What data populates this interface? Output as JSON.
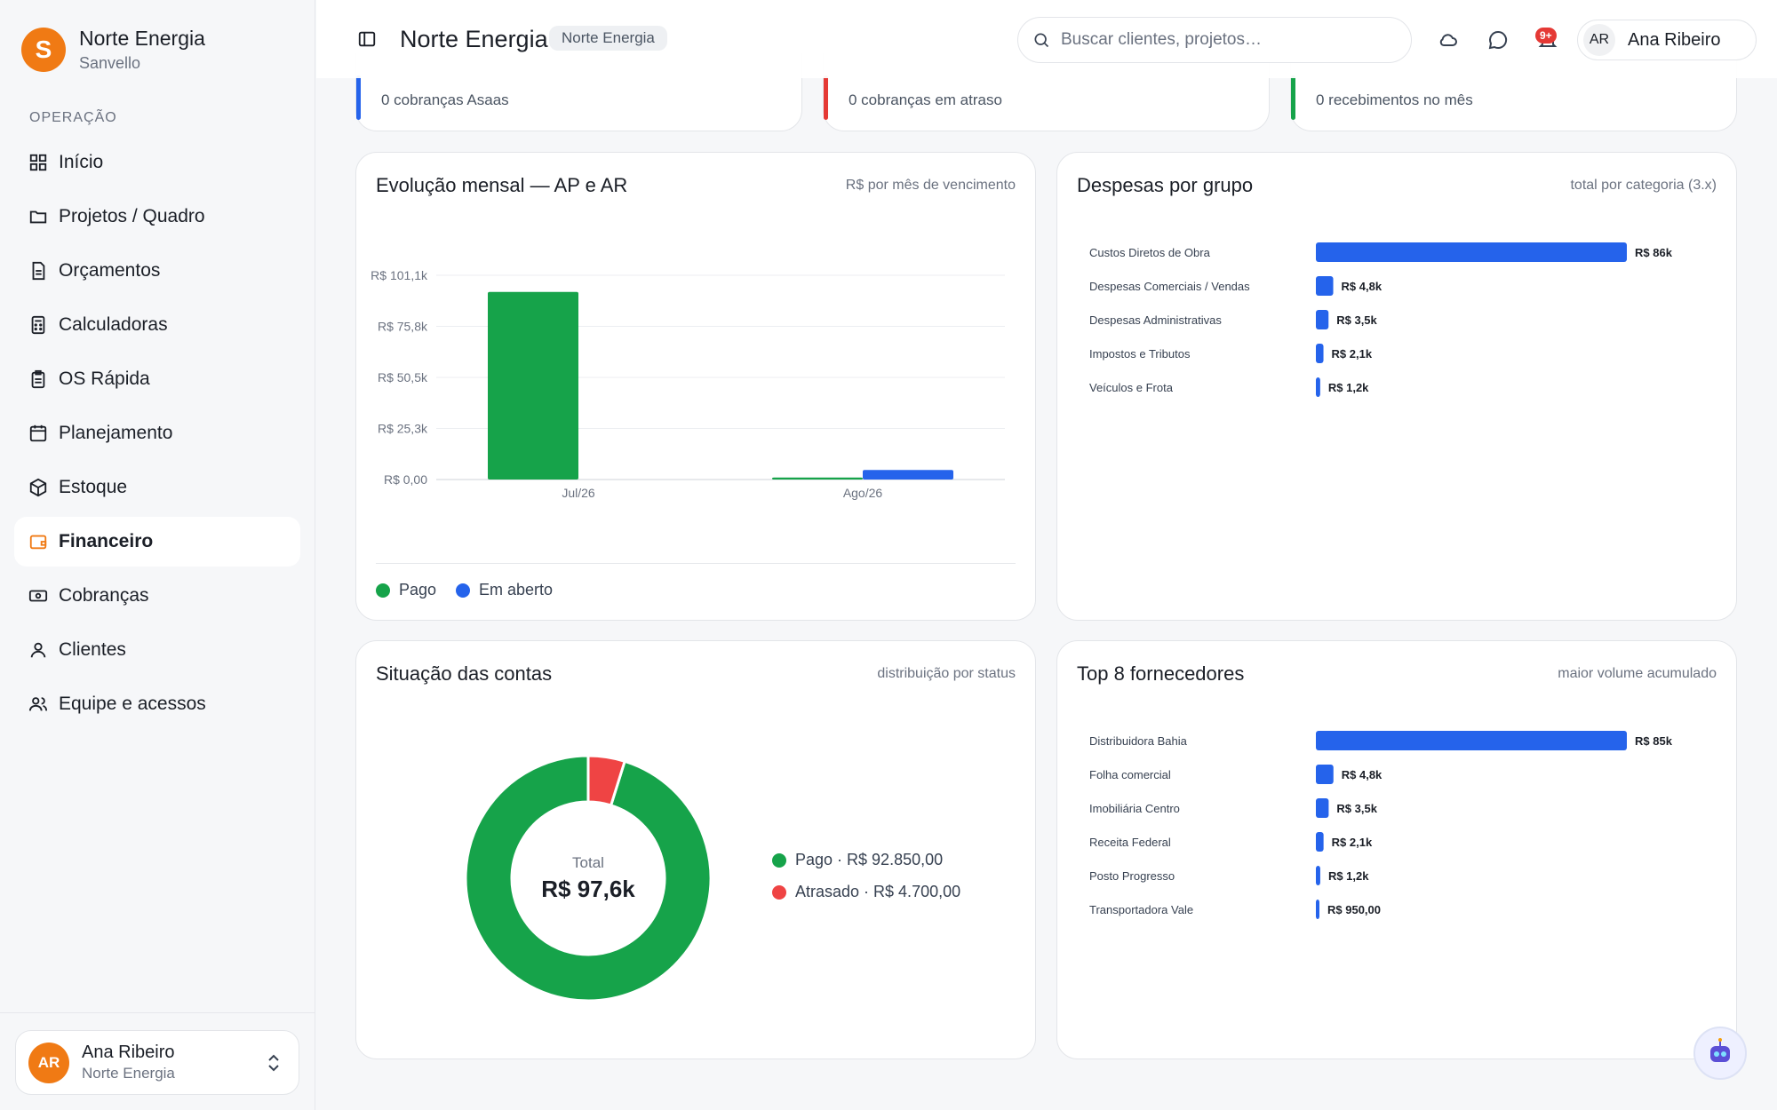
{
  "brand": {
    "logo_letter": "S",
    "name": "Norte Energia",
    "subtitle": "Sanvello"
  },
  "sidebar": {
    "section_label": "OPERAÇÃO",
    "items": [
      {
        "label": "Início",
        "icon": "grid-icon"
      },
      {
        "label": "Projetos / Quadro",
        "icon": "folder-icon"
      },
      {
        "label": "Orçamentos",
        "icon": "document-icon"
      },
      {
        "label": "Calculadoras",
        "icon": "calculator-icon"
      },
      {
        "label": "OS Rápida",
        "icon": "clipboard-icon"
      },
      {
        "label": "Planejamento",
        "icon": "calendar-icon"
      },
      {
        "label": "Estoque",
        "icon": "box-icon"
      },
      {
        "label": "Financeiro",
        "icon": "wallet-icon",
        "active": true
      },
      {
        "label": "Cobranças",
        "icon": "banknote-icon"
      },
      {
        "label": "Clientes",
        "icon": "user-icon"
      },
      {
        "label": "Equipe e acessos",
        "icon": "users-icon"
      }
    ],
    "user": {
      "initials": "AR",
      "name": "Ana Ribeiro",
      "org": "Norte Energia"
    }
  },
  "header": {
    "title": "Norte Energia",
    "chip": "Norte Energia",
    "search_placeholder": "Buscar clientes, projetos…",
    "notification_badge": "9+",
    "user_initials": "AR",
    "user_name": "Ana Ribeiro"
  },
  "stats": [
    {
      "sub": "0 cobranças Asaas",
      "color": "#2563eb"
    },
    {
      "sub": "0 cobranças em atraso",
      "color": "#e53935"
    },
    {
      "sub": "0 recebimentos no mês",
      "color": "#16a34a"
    }
  ],
  "evolucao": {
    "title": "Evolução mensal — AP e AR",
    "note": "R$ por mês de vencimento",
    "legend": [
      {
        "label": "Pago",
        "color": "#16a34a"
      },
      {
        "label": "Em aberto",
        "color": "#2563eb"
      }
    ]
  },
  "despesas": {
    "title": "Despesas por grupo",
    "note": "total por categoria (3.x)"
  },
  "situacao": {
    "title": "Situação das contas",
    "note": "distribuição por status",
    "center_label": "Total",
    "center_value": "R$ 97,6k",
    "legend": [
      {
        "label": "Pago · R$ 92.850,00",
        "color": "#16a34a"
      },
      {
        "label": "Atrasado · R$ 4.700,00",
        "color": "#ef4444"
      }
    ]
  },
  "fornecedores": {
    "title": "Top 8 fornecedores",
    "note": "maior volume acumulado"
  },
  "chart_data": [
    {
      "type": "bar",
      "categories": [
        "Jul/26",
        "Ago/26"
      ],
      "series": [
        {
          "name": "Pago",
          "color": "#16a34a",
          "values": [
            92850,
            1000
          ]
        },
        {
          "name": "Em aberto",
          "color": "#2563eb",
          "values": [
            0,
            4700
          ]
        }
      ],
      "yticks": [
        "R$ 0,00",
        "R$ 25,3k",
        "R$ 50,5k",
        "R$ 75,8k",
        "R$ 101,1k"
      ],
      "ylim": [
        0,
        101100
      ],
      "grid": true
    },
    {
      "type": "bar",
      "orientation": "horizontal",
      "categories": [
        "Custos Diretos de Obra",
        "Despesas Comerciais / Vendas",
        "Despesas Administrativas",
        "Impostos e Tributos",
        "Veículos e Frota"
      ],
      "values": [
        86000,
        4800,
        3500,
        2100,
        1200
      ],
      "labels": [
        "R$ 86k",
        "R$ 4,8k",
        "R$ 3,5k",
        "R$ 2,1k",
        "R$ 1,2k"
      ],
      "color": "#2563eb"
    },
    {
      "type": "pie",
      "donut": true,
      "categories": [
        "Pago",
        "Atrasado"
      ],
      "values": [
        92850,
        4700
      ],
      "colors": [
        "#16a34a",
        "#ef4444"
      ]
    },
    {
      "type": "bar",
      "orientation": "horizontal",
      "categories": [
        "Distribuidora Bahia",
        "Folha comercial",
        "Imobiliária Centro",
        "Receita Federal",
        "Posto Progresso",
        "Transportadora Vale"
      ],
      "values": [
        85000,
        4800,
        3500,
        2100,
        1200,
        950
      ],
      "labels": [
        "R$ 85k",
        "R$ 4,8k",
        "R$ 3,5k",
        "R$ 2,1k",
        "R$ 1,2k",
        "R$ 950,00"
      ],
      "color": "#2563eb"
    }
  ]
}
